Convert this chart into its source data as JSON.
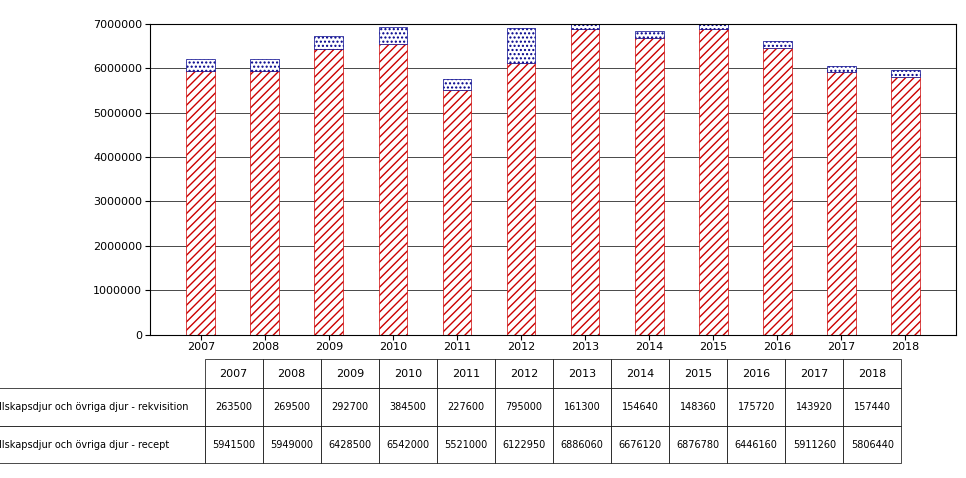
{
  "years": [
    "2007",
    "2008",
    "2009",
    "2010",
    "2011",
    "2012",
    "2013",
    "2014",
    "2015",
    "2016",
    "2017",
    "2018"
  ],
  "rekvisition": [
    263500,
    269500,
    292700,
    384500,
    227600,
    795000,
    161300,
    154640,
    148360,
    175720,
    143920,
    157440
  ],
  "recept": [
    5941500,
    5949000,
    6428500,
    6542000,
    5521000,
    6122950,
    6886060,
    6676120,
    6876780,
    6446160,
    5911260,
    5806440
  ],
  "legend_rekvisition": "Sällskapsdjur och övriga djur - rekvisition",
  "legend_recept": "Sällskapsdjur och övriga djur - recept",
  "ylim": [
    0,
    7000000
  ],
  "yticks": [
    0,
    1000000,
    2000000,
    3000000,
    4000000,
    5000000,
    6000000,
    7000000
  ],
  "recept_hatch": "////",
  "rekvisition_hatch": "....",
  "recept_facecolor": "#ffffff",
  "recept_edgecolor": "#cc0000",
  "rekvisition_facecolor": "#ffffff",
  "rekvisition_edgecolor": "#00008b",
  "bar_width": 0.45,
  "background_color": "#ffffff",
  "grid_color": "#000000",
  "grid_linewidth": 0.5,
  "tick_fontsize": 8,
  "table_fontsize": 7
}
